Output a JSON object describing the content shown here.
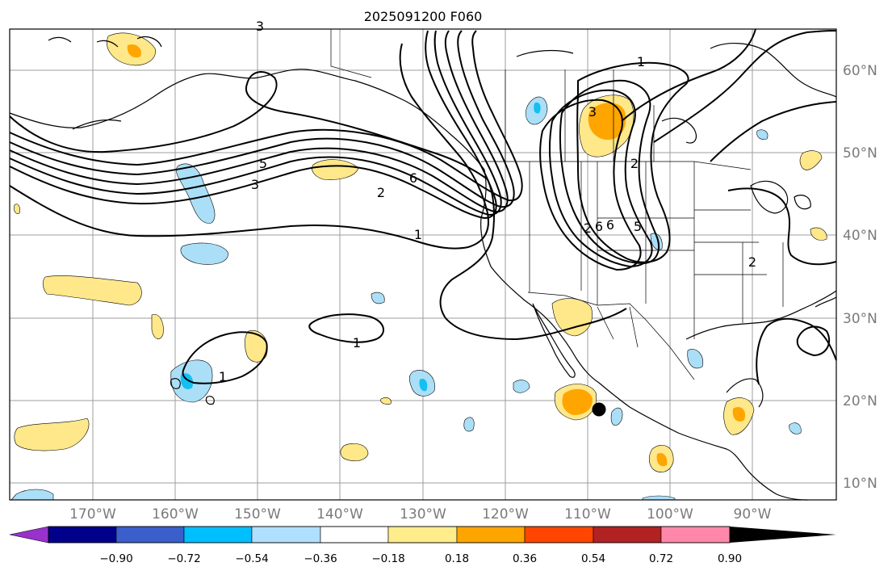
{
  "title": "2025091200 F060",
  "map": {
    "lon_labels": [
      "170°W",
      "160°W",
      "150°W",
      "140°W",
      "130°W",
      "120°W",
      "110°W",
      "100°W",
      "90°W"
    ],
    "lat_labels": [
      "60°N",
      "50°N",
      "40°N",
      "30°N",
      "20°N",
      "10°N"
    ],
    "contour_labels": [
      "1",
      "3",
      "2",
      "5",
      "6",
      "2",
      "1",
      "1",
      "1",
      "3",
      "6",
      "2",
      "6",
      "5",
      "3",
      "2"
    ],
    "marker": "storm-center-dot"
  },
  "colorbar": {
    "colors": [
      "#9932cc",
      "#00008b",
      "#3a5fcd",
      "#00bfff",
      "#b0e0ff",
      "#ffffff",
      "#ffec8b",
      "#ffa500",
      "#ff4500",
      "#b22222",
      "#ff88aa"
    ],
    "tick_labels": [
      "−0.90",
      "−0.72",
      "−0.54",
      "−0.36",
      "−0.18",
      "0.18",
      "0.36",
      "0.54",
      "0.72",
      "0.90"
    ]
  }
}
